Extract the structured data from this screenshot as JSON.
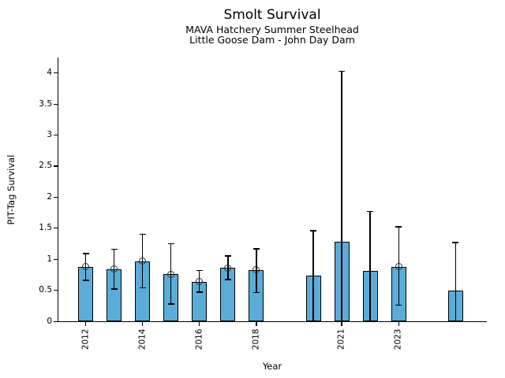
{
  "chart_data": {
    "type": "bar",
    "title": "Smolt Survival",
    "subtitle1": "MAVA Hatchery Summer Steelhead",
    "subtitle2": "Little Goose Dam - John Day Dam",
    "xlabel": "Year",
    "ylabel": "PIT-Tag Survival",
    "ylim": [
      0,
      4.25
    ],
    "xlim": [
      2011,
      2026.1
    ],
    "yticks": [
      0,
      0.5,
      1,
      1.5,
      2,
      2.5,
      3,
      3.5,
      4
    ],
    "ytick_labels": [
      "0",
      "0.5",
      "1",
      "1.5",
      "2",
      "2.5",
      "3",
      "3.5",
      "4"
    ],
    "xticks": [
      2012,
      2014,
      2016,
      2018,
      2021,
      2023
    ],
    "xtick_labels": [
      "2012",
      "2014",
      "2016",
      "2018",
      "2021",
      "2023"
    ],
    "grid": false,
    "legend": null,
    "bar_color": "#5BACD8",
    "bar_edge_color": "#000000",
    "error_color": "#000000",
    "marker_style": "open-circle",
    "points": [
      {
        "year": 2012,
        "value": 0.88,
        "ci_low": 0.66,
        "ci_high": 1.09,
        "marker": true
      },
      {
        "year": 2013,
        "value": 0.84,
        "ci_low": 0.52,
        "ci_high": 1.16,
        "marker": true
      },
      {
        "year": 2014,
        "value": 0.97,
        "ci_low": 0.54,
        "ci_high": 1.4,
        "marker": true
      },
      {
        "year": 2015,
        "value": 0.76,
        "ci_low": 0.28,
        "ci_high": 1.25,
        "marker": true
      },
      {
        "year": 2016,
        "value": 0.64,
        "ci_low": 0.47,
        "ci_high": 0.82,
        "marker": true
      },
      {
        "year": 2017,
        "value": 0.86,
        "ci_low": 0.67,
        "ci_high": 1.05,
        "marker": true
      },
      {
        "year": 2018,
        "value": 0.83,
        "ci_low": 0.46,
        "ci_high": 1.17,
        "marker": true
      },
      {
        "year": 2020,
        "value": 0.73,
        "ci_low": 0.0,
        "ci_high": 1.46,
        "marker": false
      },
      {
        "year": 2021,
        "value": 1.28,
        "ci_low": 0.0,
        "ci_high": 4.03,
        "marker": false
      },
      {
        "year": 2022,
        "value": 0.81,
        "ci_low": 0.0,
        "ci_high": 1.77,
        "marker": false
      },
      {
        "year": 2023,
        "value": 0.88,
        "ci_low": 0.26,
        "ci_high": 1.52,
        "marker": true
      },
      {
        "year": 2025,
        "value": 0.5,
        "ci_low": 0.0,
        "ci_high": 1.27,
        "marker": false
      }
    ]
  }
}
